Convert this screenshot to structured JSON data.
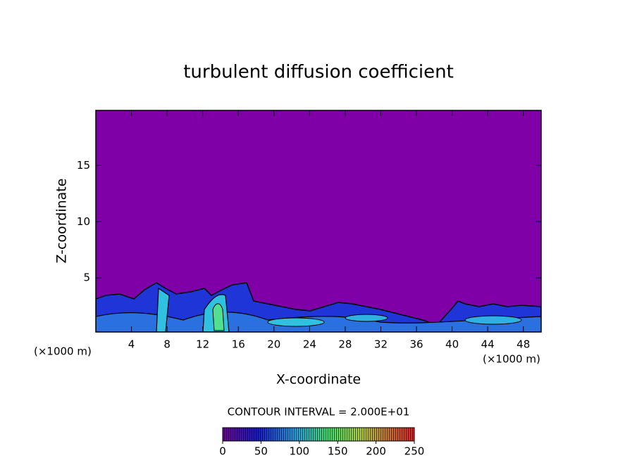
{
  "chart_data": {
    "type": "contour",
    "title": "turbulent diffusion coefficient",
    "x_label": "X-coordinate",
    "y_label": "Z-coordinate",
    "x_unit": "(×1000 m)",
    "y_unit": "(×1000 m)",
    "xlim": [
      0,
      50
    ],
    "xticks": [
      4,
      8,
      12,
      16,
      20,
      24,
      28,
      32,
      36,
      40,
      44,
      48
    ],
    "ylim": [
      0.2,
      19.9
    ],
    "yticks": [
      5,
      10,
      15
    ],
    "contour_interval_label": "CONTOUR INTERVAL = 2.000E+01",
    "colorbar": {
      "lim": [
        0,
        250
      ],
      "ticks": [
        0,
        50,
        100,
        150,
        200,
        250
      ]
    }
  }
}
